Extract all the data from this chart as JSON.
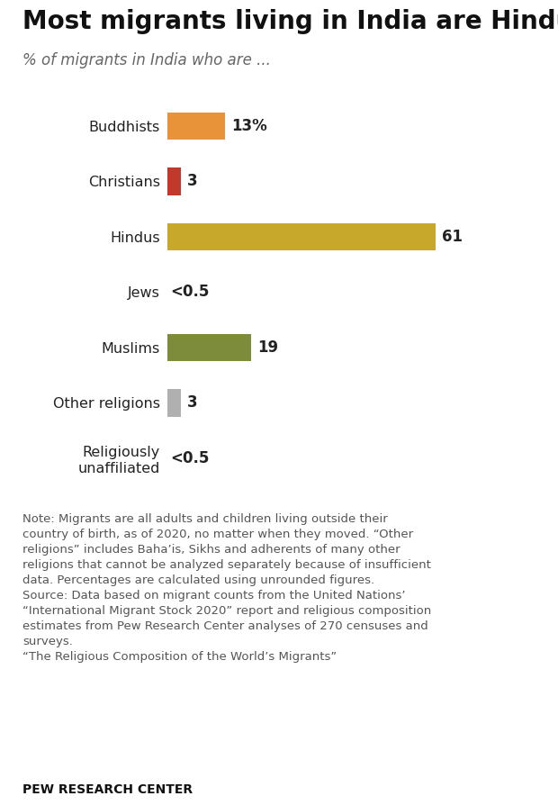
{
  "title": "Most migrants living in India are Hindu",
  "subtitle": "% of migrants in India who are ...",
  "categories": [
    "Buddhists",
    "Christians",
    "Hindus",
    "Jews",
    "Muslims",
    "Other religions",
    "Religiously\nunaffiliated"
  ],
  "values": [
    13,
    3,
    61,
    0.1,
    19,
    3,
    0.1
  ],
  "labels": [
    "13%",
    "3",
    "61",
    "<0.5",
    "19",
    "3",
    "<0.5"
  ],
  "colors": [
    "#E8923A",
    "#C0392B",
    "#C8A82A",
    "#ffffff",
    "#7D8C3A",
    "#B0B0B0",
    "#ffffff"
  ],
  "background_color": "#FFFFFF",
  "note_text": "Note: Migrants are all adults and children living outside their\ncountry of birth, as of 2020, no matter when they moved. “Other\nreligions” includes Baha’is, Sikhs and adherents of many other\nreligions that cannot be analyzed separately because of insufficient\ndata. Percentages are calculated using unrounded figures.\nSource: Data based on migrant counts from the United Nations’\n“International Migrant Stock 2020” report and religious composition\nestimates from Pew Research Center analyses of 270 censuses and\nsurveys.\n“The Religious Composition of the World’s Migrants”",
  "footer": "PEW RESEARCH CENTER",
  "title_fontsize": 20,
  "subtitle_fontsize": 12,
  "label_fontsize": 12,
  "note_fontsize": 9.5,
  "footer_fontsize": 10,
  "bar_height": 0.5,
  "xlim": 85
}
